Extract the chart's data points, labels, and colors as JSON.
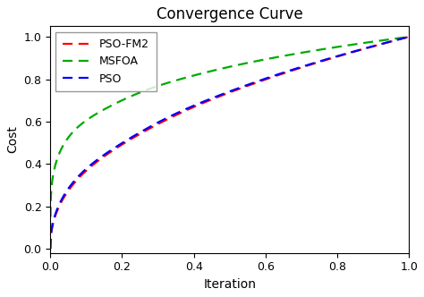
{
  "title": "Convergence Curve",
  "xlabel": "Iteration",
  "ylabel": "Cost",
  "xlim": [
    0.0,
    1.0
  ],
  "ylim": [
    -0.02,
    1.05
  ],
  "xticks": [
    0.0,
    0.2,
    0.4,
    0.6,
    0.8,
    1.0
  ],
  "yticks": [
    0.0,
    0.2,
    0.4,
    0.6,
    0.8,
    1.0
  ],
  "series": [
    {
      "label": "PSO-FM2",
      "color": "#ff0000",
      "linestyle": "--",
      "linewidth": 1.6,
      "curve_type": "pso_fm2"
    },
    {
      "label": "MSFOA",
      "color": "#00aa00",
      "linestyle": "--",
      "linewidth": 1.6,
      "curve_type": "msfoa"
    },
    {
      "label": "PSO",
      "color": "#0000ff",
      "linestyle": "--",
      "linewidth": 1.6,
      "curve_type": "pso"
    }
  ],
  "legend_loc": "upper left",
  "background_color": "#ffffff",
  "title_fontsize": 12,
  "label_fontsize": 10,
  "legend_fontsize": 9
}
